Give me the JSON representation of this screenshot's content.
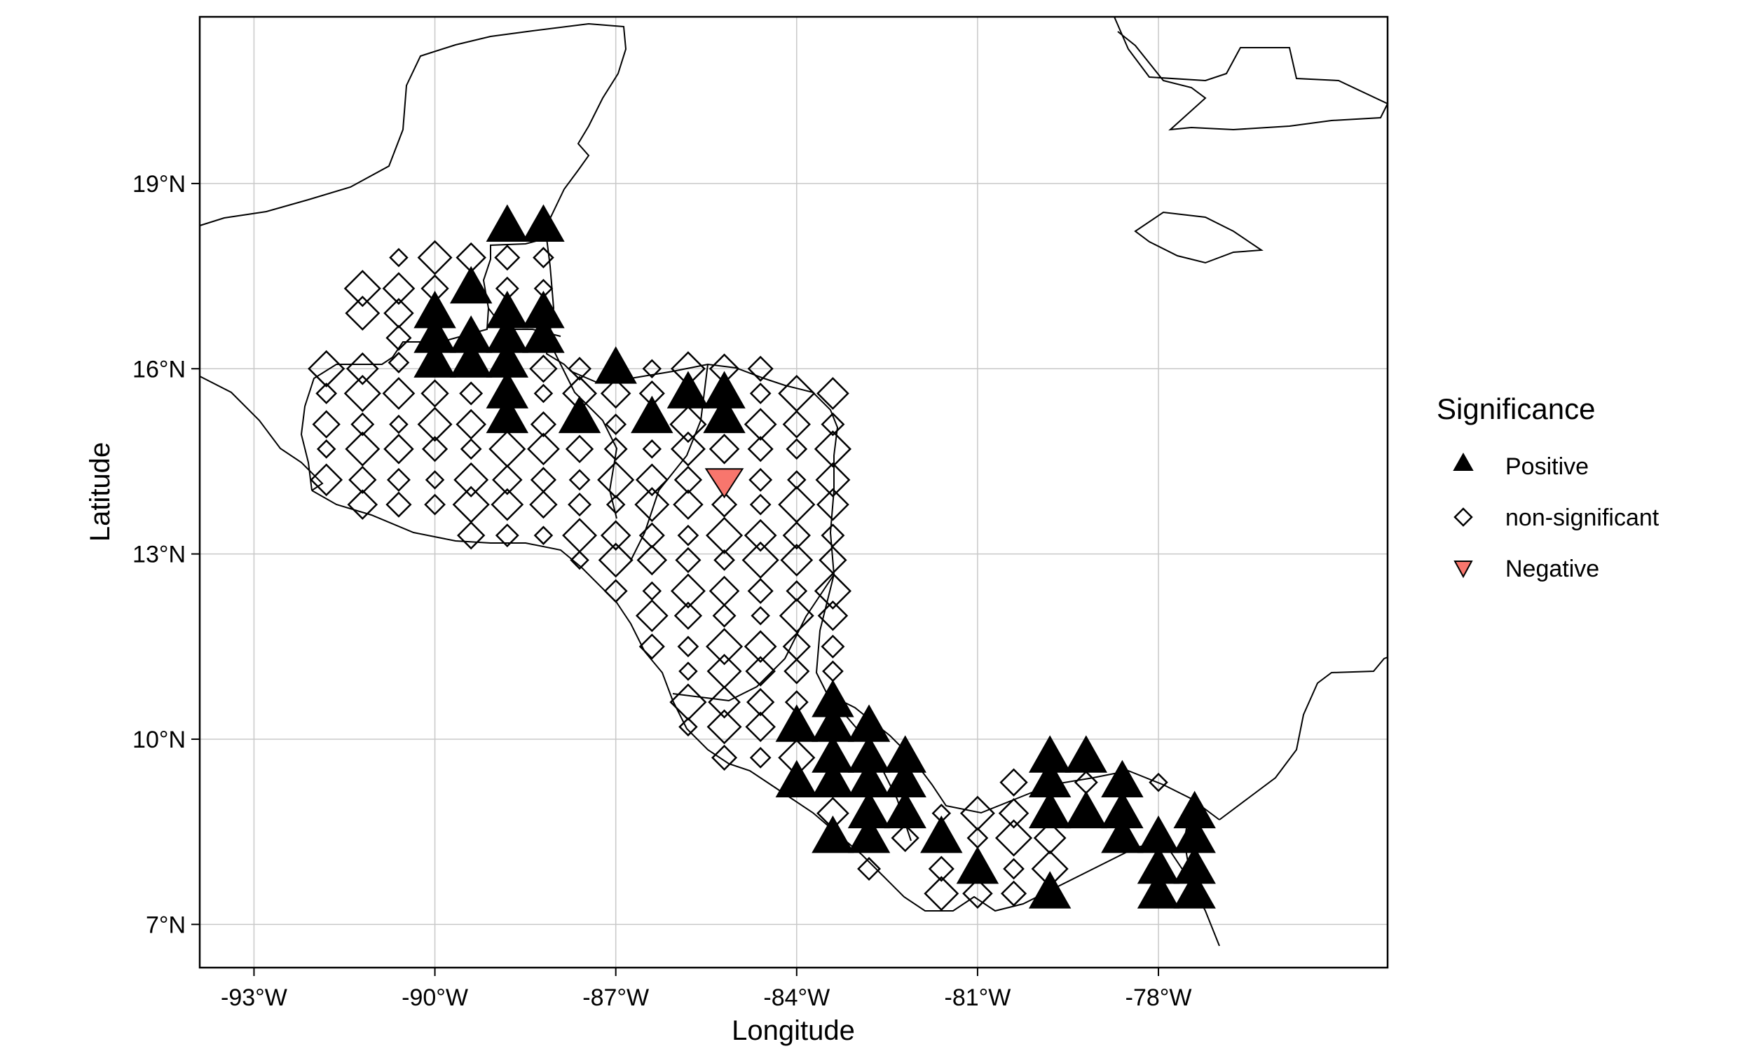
{
  "chart_data": {
    "type": "scatter",
    "xlabel": "Longitude",
    "ylabel": "Latitude",
    "xlim": [
      -93.9,
      -74.2
    ],
    "ylim": [
      6.3,
      21.7
    ],
    "grid": true,
    "legend_placement": "right",
    "x_ticks": [
      {
        "value": -93,
        "label": "-93°W"
      },
      {
        "value": -90,
        "label": "-90°W"
      },
      {
        "value": -87,
        "label": "-87°W"
      },
      {
        "value": -84,
        "label": "-84°W"
      },
      {
        "value": -81,
        "label": "-81°W"
      },
      {
        "value": -78,
        "label": "-78°W"
      }
    ],
    "y_ticks": [
      {
        "value": 7,
        "label": "7°N"
      },
      {
        "value": 10,
        "label": "10°N"
      },
      {
        "value": 13,
        "label": "13°N"
      },
      {
        "value": 16,
        "label": "16°N"
      },
      {
        "value": 19,
        "label": "19°N"
      }
    ],
    "legend": {
      "title": "Significance",
      "entries": [
        {
          "key": "positive",
          "label": "Positive",
          "shape": "triangle-up",
          "color": "#000000"
        },
        {
          "key": "ns",
          "label": "non-significant",
          "shape": "diamond-open",
          "color": "#000000"
        },
        {
          "key": "negative",
          "label": "Negative",
          "shape": "triangle-down",
          "color": "#F8766D"
        }
      ]
    },
    "series": [
      {
        "key": "positive",
        "points": [
          [
            -88.8,
            18.3
          ],
          [
            -88.2,
            18.3
          ],
          [
            -90.0,
            16.9
          ],
          [
            -89.4,
            17.3
          ],
          [
            -88.8,
            16.9
          ],
          [
            -88.2,
            16.9
          ],
          [
            -90.0,
            16.5
          ],
          [
            -89.4,
            16.5
          ],
          [
            -88.8,
            16.5
          ],
          [
            -88.2,
            16.5
          ],
          [
            -90.0,
            16.1
          ],
          [
            -89.4,
            16.1
          ],
          [
            -88.8,
            16.1
          ],
          [
            -88.8,
            15.6
          ],
          [
            -88.8,
            15.2
          ],
          [
            -87.6,
            15.2
          ],
          [
            -87.0,
            16.0
          ],
          [
            -86.4,
            15.2
          ],
          [
            -85.8,
            15.6
          ],
          [
            -85.2,
            15.6
          ],
          [
            -85.2,
            15.2
          ],
          [
            -84.0,
            10.2
          ],
          [
            -84.0,
            9.3
          ],
          [
            -83.4,
            10.6
          ],
          [
            -83.4,
            10.2
          ],
          [
            -83.4,
            9.7
          ],
          [
            -83.4,
            9.3
          ],
          [
            -83.4,
            8.4
          ],
          [
            -82.8,
            10.2
          ],
          [
            -82.8,
            9.7
          ],
          [
            -82.8,
            9.3
          ],
          [
            -82.8,
            8.8
          ],
          [
            -82.8,
            8.4
          ],
          [
            -82.2,
            9.7
          ],
          [
            -82.2,
            9.3
          ],
          [
            -82.2,
            8.8
          ],
          [
            -81.6,
            8.4
          ],
          [
            -81.0,
            7.9
          ],
          [
            -79.8,
            9.7
          ],
          [
            -79.8,
            9.3
          ],
          [
            -79.8,
            8.8
          ],
          [
            -79.8,
            7.5
          ],
          [
            -79.2,
            9.7
          ],
          [
            -79.2,
            8.8
          ],
          [
            -78.6,
            9.3
          ],
          [
            -78.6,
            8.8
          ],
          [
            -78.6,
            8.4
          ],
          [
            -78.0,
            8.4
          ],
          [
            -78.0,
            7.9
          ],
          [
            -78.0,
            7.5
          ],
          [
            -77.4,
            8.8
          ],
          [
            -77.4,
            8.4
          ],
          [
            -77.4,
            7.9
          ],
          [
            -77.4,
            7.5
          ]
        ]
      },
      {
        "key": "negative",
        "points": [
          [
            -85.2,
            14.2
          ]
        ]
      },
      {
        "key": "ns",
        "points": [
          [
            -90.6,
            17.8
          ],
          [
            -90.0,
            17.8
          ],
          [
            -89.4,
            17.8
          ],
          [
            -88.8,
            17.8
          ],
          [
            -88.2,
            17.8
          ],
          [
            -91.2,
            17.3
          ],
          [
            -90.6,
            17.3
          ],
          [
            -90.0,
            17.3
          ],
          [
            -88.8,
            17.3
          ],
          [
            -88.2,
            17.3
          ],
          [
            -91.2,
            16.9
          ],
          [
            -90.6,
            16.9
          ],
          [
            -90.6,
            16.5
          ],
          [
            -90.6,
            16.1
          ],
          [
            -91.8,
            16.0
          ],
          [
            -91.2,
            16.0
          ],
          [
            -88.2,
            16.0
          ],
          [
            -87.6,
            16.0
          ],
          [
            -86.4,
            16.0
          ],
          [
            -85.8,
            16.0
          ],
          [
            -85.2,
            16.0
          ],
          [
            -84.6,
            16.0
          ],
          [
            -91.8,
            15.6
          ],
          [
            -91.2,
            15.6
          ],
          [
            -90.6,
            15.6
          ],
          [
            -90.0,
            15.6
          ],
          [
            -89.4,
            15.6
          ],
          [
            -88.2,
            15.6
          ],
          [
            -87.6,
            15.6
          ],
          [
            -87.0,
            15.6
          ],
          [
            -86.4,
            15.6
          ],
          [
            -84.6,
            15.6
          ],
          [
            -84.0,
            15.6
          ],
          [
            -83.4,
            15.6
          ],
          [
            -91.8,
            15.1
          ],
          [
            -91.2,
            15.1
          ],
          [
            -90.6,
            15.1
          ],
          [
            -90.0,
            15.1
          ],
          [
            -89.4,
            15.1
          ],
          [
            -88.2,
            15.1
          ],
          [
            -87.0,
            15.1
          ],
          [
            -85.8,
            15.1
          ],
          [
            -84.6,
            15.1
          ],
          [
            -84.0,
            15.1
          ],
          [
            -83.4,
            15.1
          ],
          [
            -91.8,
            14.7
          ],
          [
            -91.2,
            14.7
          ],
          [
            -90.6,
            14.7
          ],
          [
            -90.0,
            14.7
          ],
          [
            -89.4,
            14.7
          ],
          [
            -88.8,
            14.7
          ],
          [
            -88.2,
            14.7
          ],
          [
            -87.6,
            14.7
          ],
          [
            -87.0,
            14.7
          ],
          [
            -86.4,
            14.7
          ],
          [
            -85.8,
            14.7
          ],
          [
            -85.2,
            14.7
          ],
          [
            -84.6,
            14.7
          ],
          [
            -84.0,
            14.7
          ],
          [
            -83.4,
            14.7
          ],
          [
            -91.8,
            14.2
          ],
          [
            -91.2,
            14.2
          ],
          [
            -90.6,
            14.2
          ],
          [
            -90.0,
            14.2
          ],
          [
            -89.4,
            14.2
          ],
          [
            -88.8,
            14.2
          ],
          [
            -88.2,
            14.2
          ],
          [
            -87.6,
            14.2
          ],
          [
            -87.0,
            14.2
          ],
          [
            -86.4,
            14.2
          ],
          [
            -85.8,
            14.2
          ],
          [
            -84.6,
            14.2
          ],
          [
            -84.0,
            14.2
          ],
          [
            -83.4,
            14.2
          ],
          [
            -91.2,
            13.8
          ],
          [
            -90.6,
            13.8
          ],
          [
            -90.0,
            13.8
          ],
          [
            -89.4,
            13.8
          ],
          [
            -88.8,
            13.8
          ],
          [
            -88.2,
            13.8
          ],
          [
            -87.6,
            13.8
          ],
          [
            -87.0,
            13.8
          ],
          [
            -86.4,
            13.8
          ],
          [
            -85.8,
            13.8
          ],
          [
            -85.2,
            13.8
          ],
          [
            -84.6,
            13.8
          ],
          [
            -84.0,
            13.8
          ],
          [
            -83.4,
            13.8
          ],
          [
            -89.4,
            13.3
          ],
          [
            -88.8,
            13.3
          ],
          [
            -88.2,
            13.3
          ],
          [
            -87.6,
            13.3
          ],
          [
            -87.0,
            13.3
          ],
          [
            -86.4,
            13.3
          ],
          [
            -85.8,
            13.3
          ],
          [
            -85.2,
            13.3
          ],
          [
            -84.6,
            13.3
          ],
          [
            -84.0,
            13.3
          ],
          [
            -83.4,
            13.3
          ],
          [
            -87.6,
            12.9
          ],
          [
            -87.0,
            12.9
          ],
          [
            -86.4,
            12.9
          ],
          [
            -85.8,
            12.9
          ],
          [
            -85.2,
            12.9
          ],
          [
            -84.6,
            12.9
          ],
          [
            -84.0,
            12.9
          ],
          [
            -83.4,
            12.9
          ],
          [
            -87.0,
            12.4
          ],
          [
            -86.4,
            12.4
          ],
          [
            -85.8,
            12.4
          ],
          [
            -85.2,
            12.4
          ],
          [
            -84.6,
            12.4
          ],
          [
            -84.0,
            12.4
          ],
          [
            -83.4,
            12.4
          ],
          [
            -86.4,
            12.0
          ],
          [
            -85.8,
            12.0
          ],
          [
            -85.2,
            12.0
          ],
          [
            -84.6,
            12.0
          ],
          [
            -84.0,
            12.0
          ],
          [
            -83.4,
            12.0
          ],
          [
            -86.4,
            11.5
          ],
          [
            -85.8,
            11.5
          ],
          [
            -85.2,
            11.5
          ],
          [
            -84.6,
            11.5
          ],
          [
            -84.0,
            11.5
          ],
          [
            -83.4,
            11.5
          ],
          [
            -85.8,
            11.1
          ],
          [
            -85.2,
            11.1
          ],
          [
            -84.6,
            11.1
          ],
          [
            -84.0,
            11.1
          ],
          [
            -83.4,
            11.1
          ],
          [
            -85.8,
            10.6
          ],
          [
            -85.2,
            10.6
          ],
          [
            -84.6,
            10.6
          ],
          [
            -84.0,
            10.6
          ],
          [
            -85.8,
            10.2
          ],
          [
            -85.2,
            10.2
          ],
          [
            -84.6,
            10.2
          ],
          [
            -85.2,
            9.7
          ],
          [
            -84.6,
            9.7
          ],
          [
            -84.0,
            9.7
          ],
          [
            -83.4,
            8.8
          ],
          [
            -82.2,
            8.4
          ],
          [
            -82.8,
            7.9
          ],
          [
            -81.6,
            8.8
          ],
          [
            -81.0,
            8.8
          ],
          [
            -80.4,
            8.8
          ],
          [
            -81.6,
            7.9
          ],
          [
            -81.0,
            8.4
          ],
          [
            -80.4,
            8.4
          ],
          [
            -79.8,
            8.4
          ],
          [
            -80.4,
            9.3
          ],
          [
            -79.2,
            9.3
          ],
          [
            -78.0,
            9.3
          ],
          [
            -81.6,
            7.5
          ],
          [
            -81.0,
            7.5
          ],
          [
            -80.4,
            7.5
          ],
          [
            -80.4,
            7.9
          ],
          [
            -79.8,
            7.9
          ]
        ]
      }
    ]
  },
  "legend_title": "Significance",
  "legend_labels": {
    "positive": "Positive",
    "ns": "non-significant",
    "negative": "Negative"
  },
  "axis": {
    "xlabel": "Longitude",
    "ylabel": "Latitude"
  }
}
